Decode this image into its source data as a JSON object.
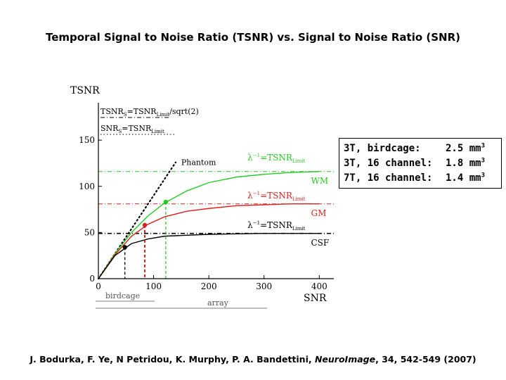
{
  "title": "Temporal Signal to Noise Ratio (TSNR) vs. Signal to Noise Ratio (SNR)",
  "chart_data": {
    "type": "line",
    "ylabel": "TSNR",
    "xlabel": "SNR",
    "xlim": [
      0,
      420
    ],
    "ylim": [
      0,
      160
    ],
    "x_ticks": [
      "0",
      "100",
      "200",
      "300",
      "400"
    ],
    "y_ticks": [
      "0",
      "50",
      "100",
      "150"
    ],
    "legend_top": [
      {
        "text": "TSNR",
        "sub": "S",
        "text2": "=TSNR",
        "sub2": "Limit",
        "text3": "/sqrt(2)"
      },
      {
        "text": "SNR",
        "sub": "S",
        "text2": "=TSNR",
        "sub2": "Limit",
        "text3": ""
      }
    ],
    "series": [
      {
        "name": "Phantom",
        "limit": null,
        "color": "#000000",
        "x": [
          0,
          40,
          80,
          120,
          140
        ],
        "y": [
          0,
          36,
          72,
          108,
          126
        ]
      },
      {
        "name": "WM",
        "limit": 116,
        "color": "#22cc22",
        "x": [
          0,
          30,
          60,
          90,
          120,
          160,
          200,
          250,
          300,
          350,
          400
        ],
        "y": [
          0,
          27,
          50,
          68,
          82,
          95,
          104,
          110,
          113,
          115,
          116
        ]
      },
      {
        "name": "GM",
        "limit": 81,
        "color": "#e01e1e",
        "x": [
          0,
          30,
          60,
          90,
          120,
          160,
          200,
          250,
          300,
          350,
          400
        ],
        "y": [
          0,
          26,
          46,
          59,
          67,
          73,
          76,
          79,
          80,
          81,
          81
        ]
      },
      {
        "name": "CSF",
        "limit": 49,
        "color": "#000000",
        "x": [
          0,
          30,
          60,
          90,
          120,
          160,
          200,
          250,
          300,
          350,
          400
        ],
        "y": [
          0,
          25,
          38,
          43,
          46,
          47,
          48,
          48.5,
          49,
          49,
          49
        ]
      }
    ],
    "limit_labels": [
      {
        "text": "λ",
        "sup": "−1",
        "text2": "=TSNR",
        "sub": "Limit",
        "color": "#22cc22"
      },
      {
        "text": "λ",
        "sup": "−1",
        "text2": "=TSNR",
        "sub": "Limit",
        "color": "#e01e1e"
      },
      {
        "text": "λ",
        "sup": "−1",
        "text2": "=TSNR",
        "sub": "Limit",
        "color": "#000000"
      }
    ],
    "markers": [
      {
        "series": "CSF",
        "x": 48,
        "y": 34,
        "color": "#000000"
      },
      {
        "series": "GM",
        "x": 84,
        "y": 58,
        "color": "#e01e1e"
      },
      {
        "series": "WM",
        "x": 122,
        "y": 83,
        "color": "#22cc22"
      }
    ],
    "annotations": [
      "birdcage",
      "array"
    ]
  },
  "resolution_box": [
    {
      "label": "3T, birdcage:",
      "value": "2.5 mm",
      "sup": "3"
    },
    {
      "label": "3T, 16 channel:",
      "value": "1.8 mm",
      "sup": "3"
    },
    {
      "label": "7T, 16 channel:",
      "value": "1.4 mm",
      "sup": "3"
    }
  ],
  "citation": {
    "authors": "J. Bodurka, F. Ye, N Petridou, K. Murphy, P. A. Bandettini,",
    "journal": "NeuroImage",
    "details": ", 34, 542-549 (2007)"
  }
}
